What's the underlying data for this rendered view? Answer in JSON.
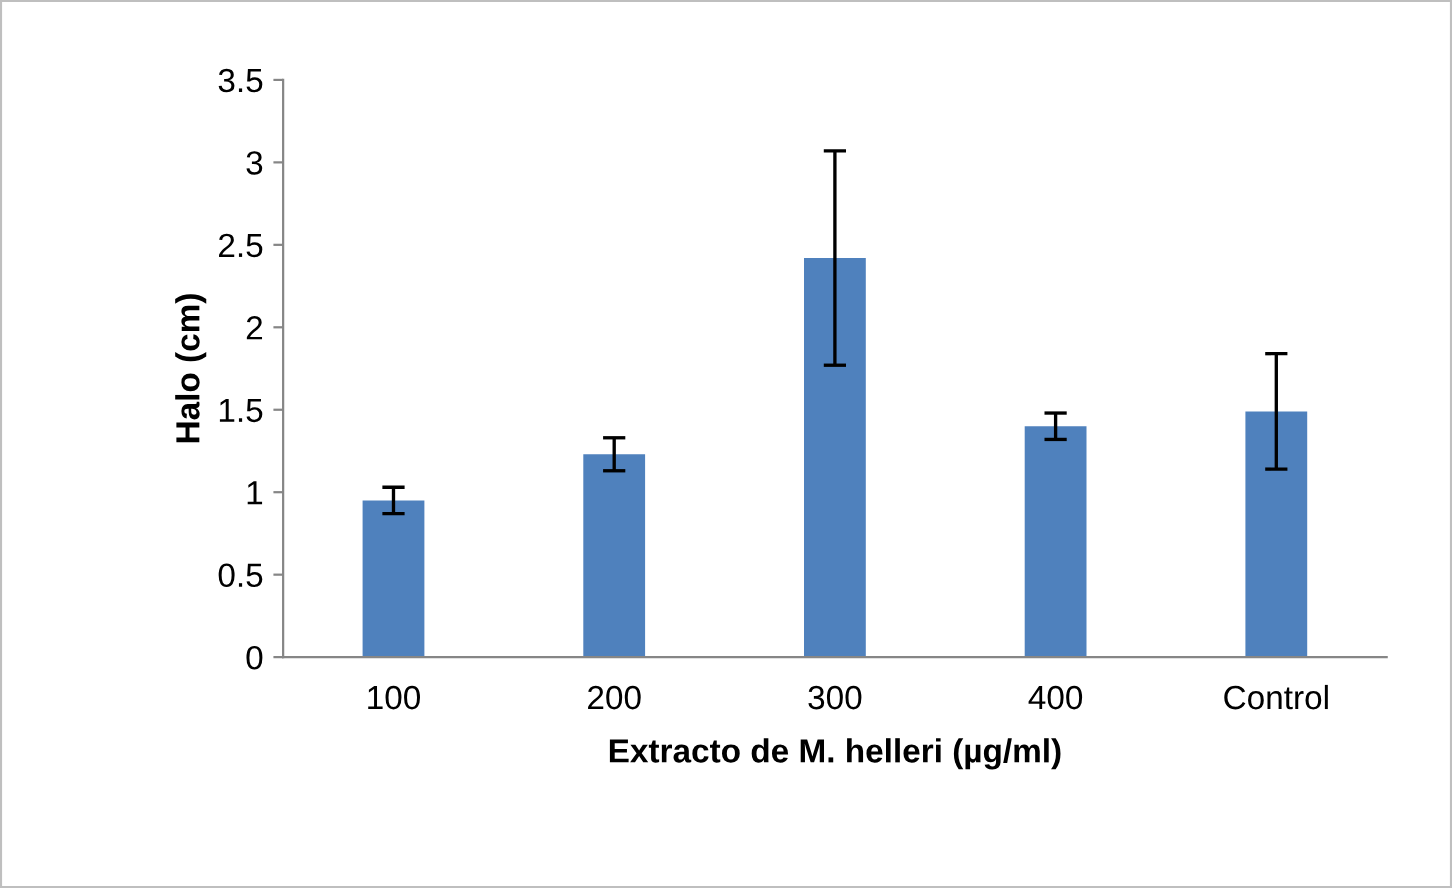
{
  "chart_data": {
    "type": "bar",
    "xlabel": "Extracto de M. helleri (µg/ml)",
    "ylabel": "Halo (cm)",
    "categories": [
      "100",
      "200",
      "300",
      "400",
      "Control"
    ],
    "values": [
      0.95,
      1.23,
      2.42,
      1.4,
      1.49
    ],
    "errors": [
      0.08,
      0.1,
      0.65,
      0.08,
      0.35
    ],
    "color": "#4f81bd",
    "ylim": [
      0,
      3.5
    ],
    "yticks": [
      0,
      0.5,
      1,
      1.5,
      2,
      2.5,
      3,
      3.5
    ],
    "grid": false,
    "legend": false
  }
}
